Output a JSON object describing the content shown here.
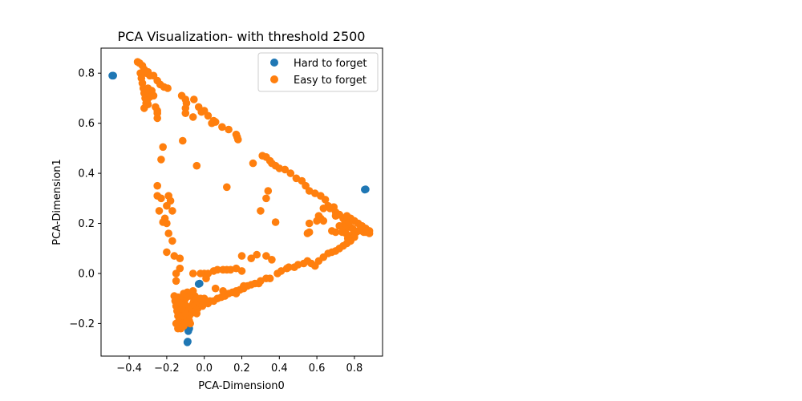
{
  "chart_data": {
    "type": "scatter",
    "title": "PCA Visualization- with threshold 2500",
    "xlabel": "PCA-Dimension0",
    "ylabel": "PCA-Dimension1",
    "xlim": [
      -0.55,
      0.95
    ],
    "ylim": [
      -0.33,
      0.9
    ],
    "xticks": [
      -0.4,
      -0.2,
      0.0,
      0.2,
      0.4,
      0.6,
      0.8
    ],
    "xtick_labels": [
      "−0.4",
      "−0.2",
      "0.0",
      "0.2",
      "0.4",
      "0.6",
      "0.8"
    ],
    "yticks": [
      -0.2,
      0.0,
      0.2,
      0.4,
      0.6,
      0.8
    ],
    "ytick_labels": [
      "−0.2",
      "0.0",
      "0.2",
      "0.4",
      "0.6",
      "0.8"
    ],
    "grid": false,
    "legend_position": "top-right",
    "series": [
      {
        "name": "Easy to forget",
        "color": "#ff7f0e",
        "points": [
          [
            -0.355,
            0.845
          ],
          [
            -0.345,
            0.84
          ],
          [
            -0.33,
            0.83
          ],
          [
            -0.32,
            0.815
          ],
          [
            -0.31,
            0.8
          ],
          [
            -0.3,
            0.805
          ],
          [
            -0.29,
            0.79
          ],
          [
            -0.27,
            0.79
          ],
          [
            -0.25,
            0.77
          ],
          [
            -0.235,
            0.755
          ],
          [
            -0.215,
            0.745
          ],
          [
            -0.195,
            0.74
          ],
          [
            -0.34,
            0.8
          ],
          [
            -0.335,
            0.78
          ],
          [
            -0.33,
            0.76
          ],
          [
            -0.325,
            0.74
          ],
          [
            -0.32,
            0.72
          ],
          [
            -0.315,
            0.7
          ],
          [
            -0.31,
            0.68
          ],
          [
            -0.3,
            0.74
          ],
          [
            -0.295,
            0.72
          ],
          [
            -0.29,
            0.705
          ],
          [
            -0.28,
            0.73
          ],
          [
            -0.27,
            0.71
          ],
          [
            -0.32,
            0.66
          ],
          [
            -0.3,
            0.675
          ],
          [
            -0.26,
            0.665
          ],
          [
            -0.25,
            0.65
          ],
          [
            -0.31,
            0.73
          ],
          [
            -0.305,
            0.69
          ],
          [
            -0.25,
            0.64
          ],
          [
            -0.25,
            0.62
          ],
          [
            -0.12,
            0.71
          ],
          [
            -0.1,
            0.695
          ],
          [
            -0.095,
            0.68
          ],
          [
            -0.1,
            0.66
          ],
          [
            -0.1,
            0.64
          ],
          [
            -0.055,
            0.695
          ],
          [
            -0.03,
            0.665
          ],
          [
            -0.015,
            0.645
          ],
          [
            -0.06,
            0.625
          ],
          [
            0.0,
            0.65
          ],
          [
            0.02,
            0.63
          ],
          [
            0.05,
            0.61
          ],
          [
            0.06,
            0.605
          ],
          [
            0.095,
            0.585
          ],
          [
            0.13,
            0.575
          ],
          [
            0.17,
            0.555
          ],
          [
            0.175,
            0.545
          ],
          [
            0.18,
            0.535
          ],
          [
            -0.115,
            0.53
          ],
          [
            -0.22,
            0.505
          ],
          [
            -0.23,
            0.455
          ],
          [
            0.04,
            0.6
          ],
          [
            -0.04,
            0.43
          ],
          [
            0.31,
            0.47
          ],
          [
            0.33,
            0.465
          ],
          [
            0.35,
            0.45
          ],
          [
            0.36,
            0.44
          ],
          [
            0.38,
            0.43
          ],
          [
            0.4,
            0.42
          ],
          [
            0.43,
            0.415
          ],
          [
            0.46,
            0.4
          ],
          [
            0.49,
            0.38
          ],
          [
            0.52,
            0.37
          ],
          [
            0.54,
            0.35
          ],
          [
            0.56,
            0.33
          ],
          [
            0.59,
            0.32
          ],
          [
            0.62,
            0.31
          ],
          [
            0.645,
            0.295
          ],
          [
            0.66,
            0.27
          ],
          [
            0.69,
            0.265
          ],
          [
            0.7,
            0.245
          ],
          [
            0.715,
            0.235
          ],
          [
            0.26,
            0.44
          ],
          [
            0.72,
            0.235
          ],
          [
            0.74,
            0.22
          ],
          [
            0.75,
            0.205
          ],
          [
            0.76,
            0.2
          ],
          [
            0.775,
            0.185
          ],
          [
            0.79,
            0.18
          ],
          [
            0.8,
            0.17
          ],
          [
            0.81,
            0.165
          ],
          [
            0.82,
            0.17
          ],
          [
            0.83,
            0.175
          ],
          [
            0.84,
            0.17
          ],
          [
            0.85,
            0.165
          ],
          [
            0.86,
            0.165
          ],
          [
            0.87,
            0.168
          ],
          [
            0.88,
            0.17
          ],
          [
            0.88,
            0.16
          ],
          [
            0.86,
            0.18
          ],
          [
            0.84,
            0.19
          ],
          [
            0.82,
            0.2
          ],
          [
            0.8,
            0.21
          ],
          [
            0.78,
            0.22
          ],
          [
            0.76,
            0.23
          ],
          [
            0.77,
            0.2
          ],
          [
            0.79,
            0.155
          ],
          [
            0.8,
            0.145
          ],
          [
            0.78,
            0.13
          ],
          [
            0.76,
            0.12
          ],
          [
            0.74,
            0.11
          ],
          [
            0.72,
            0.1
          ],
          [
            0.7,
            0.09
          ],
          [
            0.68,
            0.085
          ],
          [
            0.66,
            0.08
          ],
          [
            0.635,
            0.065
          ],
          [
            0.61,
            0.05
          ],
          [
            0.59,
            0.03
          ],
          [
            0.57,
            0.04
          ],
          [
            0.55,
            0.05
          ],
          [
            0.53,
            0.04
          ],
          [
            0.5,
            0.035
          ],
          [
            0.48,
            0.025
          ],
          [
            0.45,
            0.025
          ],
          [
            0.755,
            0.16
          ],
          [
            0.765,
            0.14
          ],
          [
            0.75,
            0.18
          ],
          [
            0.62,
            0.22
          ],
          [
            0.6,
            0.21
          ],
          [
            0.56,
            0.2
          ],
          [
            0.55,
            0.16
          ],
          [
            0.56,
            0.165
          ],
          [
            0.38,
            0.205
          ],
          [
            0.34,
            0.33
          ],
          [
            0.33,
            0.3
          ],
          [
            0.3,
            0.25
          ],
          [
            0.61,
            0.23
          ],
          [
            0.635,
            0.21
          ],
          [
            0.635,
            0.26
          ],
          [
            0.67,
            0.26
          ],
          [
            0.7,
            0.23
          ],
          [
            0.72,
            0.19
          ],
          [
            0.7,
            0.165
          ],
          [
            0.68,
            0.17
          ],
          [
            0.735,
            0.165
          ],
          [
            -0.25,
            0.35
          ],
          [
            -0.25,
            0.31
          ],
          [
            -0.23,
            0.3
          ],
          [
            -0.19,
            0.31
          ],
          [
            -0.18,
            0.29
          ],
          [
            -0.2,
            0.27
          ],
          [
            -0.24,
            0.25
          ],
          [
            -0.21,
            0.22
          ],
          [
            -0.2,
            0.2
          ],
          [
            -0.22,
            0.205
          ],
          [
            -0.17,
            0.25
          ],
          [
            -0.19,
            0.16
          ],
          [
            -0.17,
            0.13
          ],
          [
            -0.2,
            0.085
          ],
          [
            -0.16,
            0.07
          ],
          [
            -0.13,
            0.06
          ],
          [
            0.12,
            0.345
          ],
          [
            -0.15,
            0.0
          ],
          [
            -0.15,
            -0.03
          ],
          [
            -0.16,
            -0.09
          ],
          [
            -0.155,
            -0.11
          ],
          [
            -0.15,
            -0.13
          ],
          [
            -0.145,
            -0.15
          ],
          [
            -0.14,
            -0.17
          ],
          [
            -0.135,
            -0.19
          ],
          [
            -0.13,
            -0.21
          ],
          [
            -0.125,
            -0.22
          ],
          [
            -0.12,
            -0.19
          ],
          [
            -0.115,
            -0.16
          ],
          [
            -0.11,
            -0.14
          ],
          [
            -0.105,
            -0.12
          ],
          [
            -0.1,
            -0.1
          ],
          [
            -0.095,
            -0.13
          ],
          [
            -0.09,
            -0.15
          ],
          [
            -0.085,
            -0.17
          ],
          [
            -0.08,
            -0.19
          ],
          [
            -0.075,
            -0.2
          ],
          [
            -0.07,
            -0.16
          ],
          [
            -0.065,
            -0.14
          ],
          [
            -0.06,
            -0.12
          ],
          [
            -0.055,
            -0.11
          ],
          [
            -0.05,
            -0.13
          ],
          [
            -0.045,
            -0.15
          ],
          [
            -0.04,
            -0.16
          ],
          [
            -0.035,
            -0.14
          ],
          [
            -0.03,
            -0.13
          ],
          [
            -0.025,
            -0.115
          ],
          [
            -0.02,
            -0.12
          ],
          [
            -0.01,
            -0.13
          ],
          [
            0.0,
            -0.12
          ],
          [
            0.02,
            -0.12
          ],
          [
            0.03,
            -0.11
          ],
          [
            0.05,
            -0.11
          ],
          [
            0.07,
            -0.1
          ],
          [
            0.09,
            -0.095
          ],
          [
            0.11,
            -0.09
          ],
          [
            0.13,
            -0.08
          ],
          [
            0.15,
            -0.075
          ],
          [
            0.17,
            -0.07
          ],
          [
            0.19,
            -0.065
          ],
          [
            0.21,
            -0.06
          ],
          [
            0.23,
            -0.05
          ],
          [
            0.25,
            -0.045
          ],
          [
            0.27,
            -0.04
          ],
          [
            0.29,
            -0.04
          ],
          [
            0.3,
            -0.03
          ],
          [
            0.33,
            -0.02
          ],
          [
            0.35,
            -0.02
          ],
          [
            0.39,
            0.0
          ],
          [
            0.41,
            0.01
          ],
          [
            0.44,
            0.02
          ],
          [
            -0.14,
            -0.2
          ],
          [
            -0.13,
            -0.18
          ],
          [
            -0.12,
            -0.17
          ],
          [
            -0.115,
            -0.2
          ],
          [
            -0.11,
            -0.21
          ],
          [
            -0.1,
            -0.2
          ],
          [
            -0.09,
            -0.18
          ],
          [
            -0.08,
            -0.17
          ],
          [
            -0.1,
            -0.16
          ],
          [
            -0.12,
            -0.14
          ],
          [
            -0.125,
            -0.12
          ],
          [
            -0.13,
            -0.1
          ],
          [
            -0.14,
            -0.095
          ],
          [
            -0.11,
            -0.08
          ],
          [
            -0.09,
            -0.075
          ],
          [
            -0.07,
            -0.08
          ],
          [
            -0.05,
            -0.09
          ],
          [
            -0.04,
            -0.1
          ],
          [
            -0.02,
            -0.1
          ],
          [
            0.0,
            -0.1
          ],
          [
            -0.06,
            -0.07
          ],
          [
            -0.08,
            -0.09
          ],
          [
            -0.15,
            -0.2
          ],
          [
            -0.14,
            -0.22
          ],
          [
            0.01,
            -0.02
          ],
          [
            0.0,
            0.0
          ],
          [
            0.02,
            0.0
          ],
          [
            0.05,
            0.01
          ],
          [
            0.07,
            0.015
          ],
          [
            0.1,
            0.015
          ],
          [
            0.12,
            0.015
          ],
          [
            0.14,
            0.015
          ],
          [
            0.17,
            0.02
          ],
          [
            0.2,
            0.07
          ],
          [
            0.25,
            0.06
          ],
          [
            0.28,
            0.075
          ],
          [
            0.33,
            0.07
          ],
          [
            0.36,
            0.055
          ],
          [
            0.1,
            -0.07
          ],
          [
            0.06,
            -0.06
          ],
          [
            -0.02,
            0.0
          ],
          [
            -0.13,
            0.02
          ],
          [
            -0.06,
            0.0
          ],
          [
            0.2,
            0.01
          ],
          [
            0.21,
            -0.05
          ],
          [
            0.17,
            -0.08
          ]
        ]
      },
      {
        "name": "Hard to forget",
        "color": "#1f77b4",
        "points": [
          [
            -0.49,
            0.79
          ],
          [
            -0.485,
            0.79
          ],
          [
            0.86,
            0.336
          ],
          [
            0.855,
            0.335
          ],
          [
            -0.025,
            -0.04
          ],
          [
            -0.03,
            -0.042
          ],
          [
            -0.085,
            -0.23
          ],
          [
            -0.08,
            -0.22
          ],
          [
            -0.09,
            -0.275
          ],
          [
            -0.088,
            -0.272
          ]
        ]
      }
    ],
    "legend": [
      "Hard to forget",
      "Easy to forget"
    ]
  }
}
